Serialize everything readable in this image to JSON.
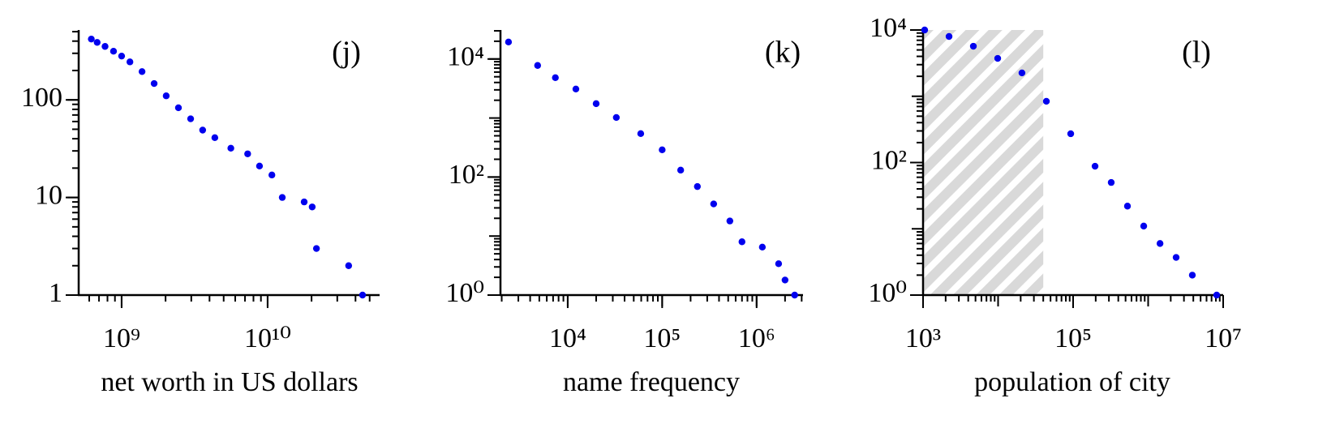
{
  "chart_data": [
    {
      "type": "scatter",
      "annotation": "(j)",
      "xlabel": "net worth in US dollars",
      "color": "#0000ee",
      "log_x": true,
      "log_y": true,
      "minor_ticks": true,
      "xlim": [
        508000000,
        58500000000
      ],
      "ylim": [
        1,
        520
      ],
      "xticks": [
        {
          "value": 1000000000,
          "label": "10⁹"
        },
        {
          "value": 10000000000,
          "label": "10¹⁰"
        }
      ],
      "yticks": [
        1,
        10,
        100
      ],
      "x": [
        620000000,
        680000000,
        770000000,
        880000000,
        1000000000,
        1140000000,
        1380000000,
        1670000000,
        2020000000,
        2450000000,
        2970000000,
        3590000000,
        4350000000,
        5600000000,
        7300000000,
        8800000000,
        10700000000,
        12600000000,
        17800000000,
        20200000000,
        21600000000,
        35900000000,
        44700000000
      ],
      "y": [
        420,
        388,
        353,
        315,
        281,
        245,
        195,
        147,
        110,
        83,
        64,
        49,
        41,
        32,
        28,
        21,
        17,
        10,
        9,
        8,
        3,
        2,
        1
      ]
    },
    {
      "type": "scatter",
      "annotation": "(k)",
      "xlabel": "name frequency",
      "color": "#0000ee",
      "log_x": true,
      "log_y": true,
      "minor_ticks": true,
      "xlim": [
        1940,
        3100000
      ],
      "ylim": [
        1,
        31000
      ],
      "xticks": [
        {
          "value": 10000,
          "label": "10⁴"
        },
        {
          "value": 100000,
          "label": "10⁵"
        },
        {
          "value": 1000000,
          "label": "10⁶"
        }
      ],
      "yticks": [
        {
          "value": 1,
          "label": "10⁰"
        },
        {
          "value": 100,
          "label": "10²"
        },
        {
          "value": 10000,
          "label": "10⁴"
        }
      ],
      "x": [
        2360,
        4800,
        7400,
        12200,
        20000,
        32700,
        59300,
        100000,
        157000,
        236000,
        351000,
        521000,
        700000,
        1150000,
        1710000,
        2000000,
        2530000
      ],
      "y": [
        19400,
        7770,
        4830,
        3100,
        1750,
        1020,
        544,
        289,
        131,
        69,
        35,
        18,
        8,
        6.5,
        3.4,
        1.8,
        1
      ]
    },
    {
      "type": "scatter",
      "annotation": "(l)",
      "xlabel": "population of city",
      "color": "#0000ee",
      "log_x": true,
      "log_y": true,
      "minor_ticks": true,
      "shaded_range": [
        1000,
        40000
      ],
      "xlim": [
        1000,
        10000000
      ],
      "ylim": [
        1,
        10000
      ],
      "xticks": [
        {
          "value": 1000,
          "label": "10³"
        },
        {
          "value": 100000,
          "label": "10⁵"
        },
        {
          "value": 10000000,
          "label": "10⁷"
        }
      ],
      "yticks": [
        {
          "value": 1,
          "label": "10⁰"
        },
        {
          "value": 100,
          "label": "10²"
        },
        {
          "value": 10000,
          "label": "10⁴"
        }
      ],
      "x": [
        1050,
        2220,
        4680,
        9880,
        20800,
        44000,
        92900,
        196000,
        322000,
        530000,
        873000,
        1440000,
        2360000,
        3880000,
        8200000
      ],
      "y": [
        10000,
        7980,
        5690,
        3730,
        2250,
        840,
        272,
        88,
        50,
        22,
        11,
        6,
        3.7,
        2,
        1
      ]
    }
  ]
}
